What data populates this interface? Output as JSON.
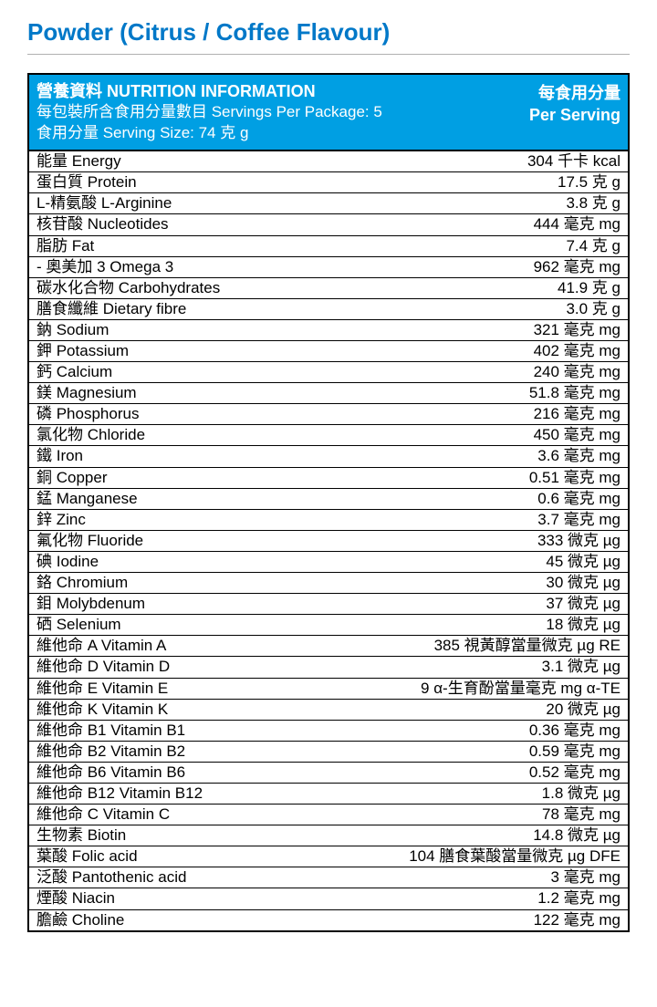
{
  "title": "Powder (Citrus / Coffee Flavour)",
  "header": {
    "title_line": "營養資料 NUTRITION INFORMATION",
    "servings_line": "每包裝所含食用分量數目 Servings Per Package: 5",
    "size_line": "食用分量 Serving Size: 74 克 g",
    "per_serving_cn": "每食用分量",
    "per_serving_en": "Per Serving"
  },
  "colors": {
    "title_color": "#0078c8",
    "header_bg": "#009fe3",
    "header_text": "#ffffff",
    "border": "#000000"
  },
  "rows": [
    {
      "label": "能量 Energy",
      "value": "304 千卡 kcal"
    },
    {
      "label": "蛋白質 Protein",
      "value": "17.5 克 g"
    },
    {
      "label": "L-精氨酸 L-Arginine",
      "value": "3.8 克 g"
    },
    {
      "label": "核苷酸 Nucleotides",
      "value": "444 毫克 mg"
    },
    {
      "label": "脂肪 Fat",
      "value": "7.4 克 g"
    },
    {
      "label": "- 奧美加 3 Omega 3",
      "value": "962 毫克 mg"
    },
    {
      "label": "碳水化合物 Carbohydrates",
      "value": "41.9 克 g"
    },
    {
      "label": "膳食纖維 Dietary fibre",
      "value": "3.0 克 g"
    },
    {
      "label": "鈉 Sodium",
      "value": "321 毫克 mg"
    },
    {
      "label": "鉀 Potassium",
      "value": "402 毫克 mg"
    },
    {
      "label": "鈣 Calcium",
      "value": "240 毫克 mg"
    },
    {
      "label": "鎂 Magnesium",
      "value": "51.8 毫克 mg"
    },
    {
      "label": "磷 Phosphorus",
      "value": "216 毫克 mg"
    },
    {
      "label": "氯化物 Chloride",
      "value": "450 毫克 mg"
    },
    {
      "label": "鐵 Iron",
      "value": "3.6 毫克 mg"
    },
    {
      "label": "銅 Copper",
      "value": "0.51 毫克 mg"
    },
    {
      "label": "錳 Manganese",
      "value": "0.6 毫克 mg"
    },
    {
      "label": "鋅 Zinc",
      "value": "3.7 毫克 mg"
    },
    {
      "label": "氟化物 Fluoride",
      "value": "333 微克 µg"
    },
    {
      "label": "碘 Iodine",
      "value": "45 微克 µg"
    },
    {
      "label": "鉻 Chromium",
      "value": "30 微克 µg"
    },
    {
      "label": "鉬 Molybdenum",
      "value": "37 微克 µg"
    },
    {
      "label": "硒 Selenium",
      "value": "18 微克 µg"
    },
    {
      "label": "維他命 A Vitamin A",
      "value": "385 視黃醇當量微克 µg RE"
    },
    {
      "label": "維他命 D Vitamin D",
      "value": "3.1 微克 µg"
    },
    {
      "label": "維他命 E Vitamin E",
      "value": "9 α-生育酚當量毫克 mg α-TE"
    },
    {
      "label": "維他命 K Vitamin K",
      "value": "20 微克 µg"
    },
    {
      "label": "維他命 B1 Vitamin B1",
      "value": "0.36 毫克 mg"
    },
    {
      "label": "維他命 B2 Vitamin B2",
      "value": "0.59 毫克 mg"
    },
    {
      "label": "維他命 B6 Vitamin B6",
      "value": "0.52 毫克 mg"
    },
    {
      "label": "維他命 B12 Vitamin B12",
      "value": "1.8 微克 µg"
    },
    {
      "label": "維他命 C Vitamin C",
      "value": "78 毫克 mg"
    },
    {
      "label": "生物素 Biotin",
      "value": "14.8 微克 µg"
    },
    {
      "label": "葉酸 Folic acid",
      "value": "104 膳食葉酸當量微克 µg DFE"
    },
    {
      "label": "泛酸 Pantothenic acid",
      "value": "3 毫克 mg"
    },
    {
      "label": "煙酸 Niacin",
      "value": "1.2 毫克 mg"
    },
    {
      "label": "膽鹼 Choline",
      "value": "122 毫克 mg"
    }
  ]
}
